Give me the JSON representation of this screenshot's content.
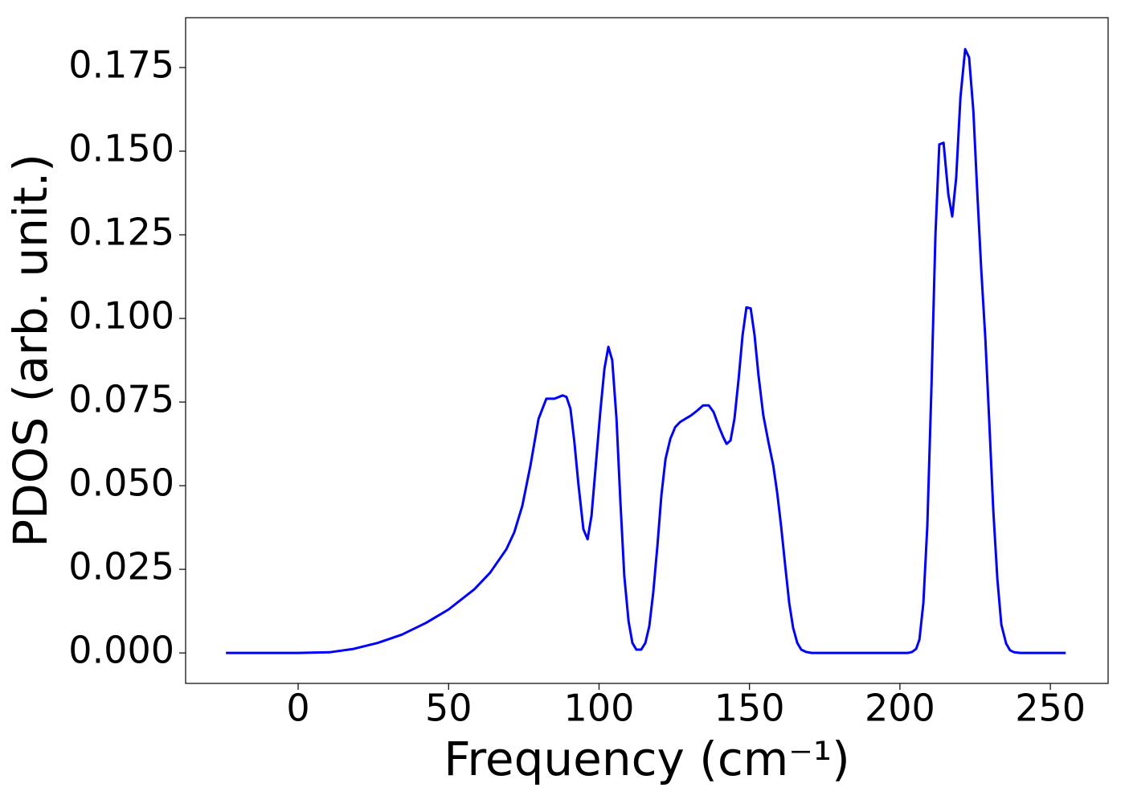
{
  "chart_data": {
    "type": "line",
    "xlabel": "Frequency (cm⁻¹)",
    "ylabel": "PDOS (arb. unit.)",
    "xlim": [
      -37.4,
      269.2
    ],
    "ylim": [
      -0.0091,
      0.1899
    ],
    "xticks": [
      0,
      50,
      100,
      150,
      200,
      250
    ],
    "yticks": [
      {
        "value": 0,
        "label": "0.000"
      },
      {
        "value": 0.025,
        "label": "0.025"
      },
      {
        "value": 0.05,
        "label": "0.050"
      },
      {
        "value": 0.075,
        "label": "0.075"
      },
      {
        "value": 0.1,
        "label": "0.100"
      },
      {
        "value": 0.125,
        "label": "0.125"
      },
      {
        "value": 0.15,
        "label": "0.150"
      },
      {
        "value": 0.175,
        "label": "0.175"
      }
    ],
    "x": [
      -24,
      0,
      10.4,
      18.4,
      26.4,
      34.5,
      42.5,
      50,
      58.5,
      63.8,
      69.2,
      71.8,
      74.5,
      77.2,
      79.9,
      82.5,
      85.2,
      87.9,
      89.2,
      90.5,
      91.8,
      93.2,
      94.8,
      96.2,
      97.5,
      99.1,
      100.4,
      101.8,
      103.1,
      104.4,
      105.8,
      107.1,
      108.4,
      109.8,
      111.1,
      112.4,
      114,
      115.4,
      116.7,
      118,
      119.4,
      120.7,
      122.1,
      123.7,
      125.3,
      126.9,
      128.7,
      130.6,
      132.7,
      134.6,
      136.5,
      138.1,
      139.9,
      141.3,
      142.4,
      143.7,
      145,
      146.4,
      147.7,
      149,
      150.4,
      151.7,
      153,
      154.6,
      156.3,
      157.9,
      159.2,
      160.5,
      161.9,
      163.2,
      164.5,
      165.9,
      167.2,
      168.8,
      170.7,
      202.7,
      204,
      205.4,
      206.5,
      207.8,
      209.1,
      210.5,
      211.8,
      213.1,
      214.5,
      216.1,
      217.4,
      218.7,
      220.1,
      221.7,
      223,
      224.4,
      225.7,
      227,
      228.4,
      229.7,
      231,
      232.4,
      233.7,
      235.3,
      236.6,
      238,
      240.1,
      255.1
    ],
    "series": [
      {
        "color": "#0000ff",
        "values": [
          0,
          0,
          0.0002,
          0.0012,
          0.003,
          0.0055,
          0.009,
          0.013,
          0.019,
          0.024,
          0.031,
          0.036,
          0.044,
          0.056,
          0.07,
          0.076,
          0.076,
          0.077,
          0.0765,
          0.073,
          0.063,
          0.05,
          0.037,
          0.034,
          0.041,
          0.058,
          0.072,
          0.085,
          0.0915,
          0.0875,
          0.07,
          0.045,
          0.023,
          0.0095,
          0.003,
          0.001,
          0.001,
          0.003,
          0.008,
          0.018,
          0.032,
          0.047,
          0.058,
          0.064,
          0.0675,
          0.069,
          0.07,
          0.071,
          0.0725,
          0.074,
          0.074,
          0.072,
          0.0675,
          0.0645,
          0.0625,
          0.0635,
          0.07,
          0.082,
          0.095,
          0.1033,
          0.103,
          0.095,
          0.083,
          0.071,
          0.063,
          0.056,
          0.048,
          0.038,
          0.026,
          0.015,
          0.0075,
          0.003,
          0.001,
          0.0003,
          0,
          0,
          0.0003,
          0.0012,
          0.004,
          0.015,
          0.038,
          0.08,
          0.125,
          0.152,
          0.1525,
          0.137,
          0.1305,
          0.142,
          0.166,
          0.1805,
          0.178,
          0.162,
          0.138,
          0.115,
          0.094,
          0.069,
          0.043,
          0.022,
          0.0085,
          0.0028,
          0.0008,
          0.0002,
          0,
          0
        ]
      }
    ]
  }
}
